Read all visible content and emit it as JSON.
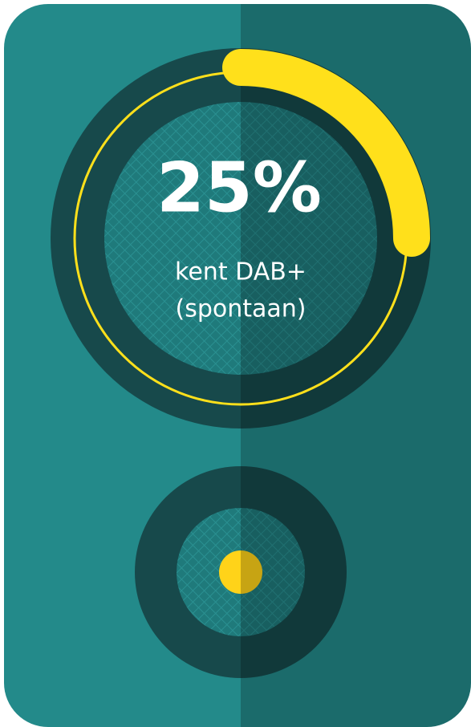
{
  "chart_data": {
    "type": "gauge",
    "values": [
      25
    ],
    "value_labels": [
      "25%"
    ],
    "ylim": [
      0,
      100
    ],
    "caption": [
      "kent DAB+",
      "(spontaan)"
    ],
    "color": "#ffe01b"
  }
}
